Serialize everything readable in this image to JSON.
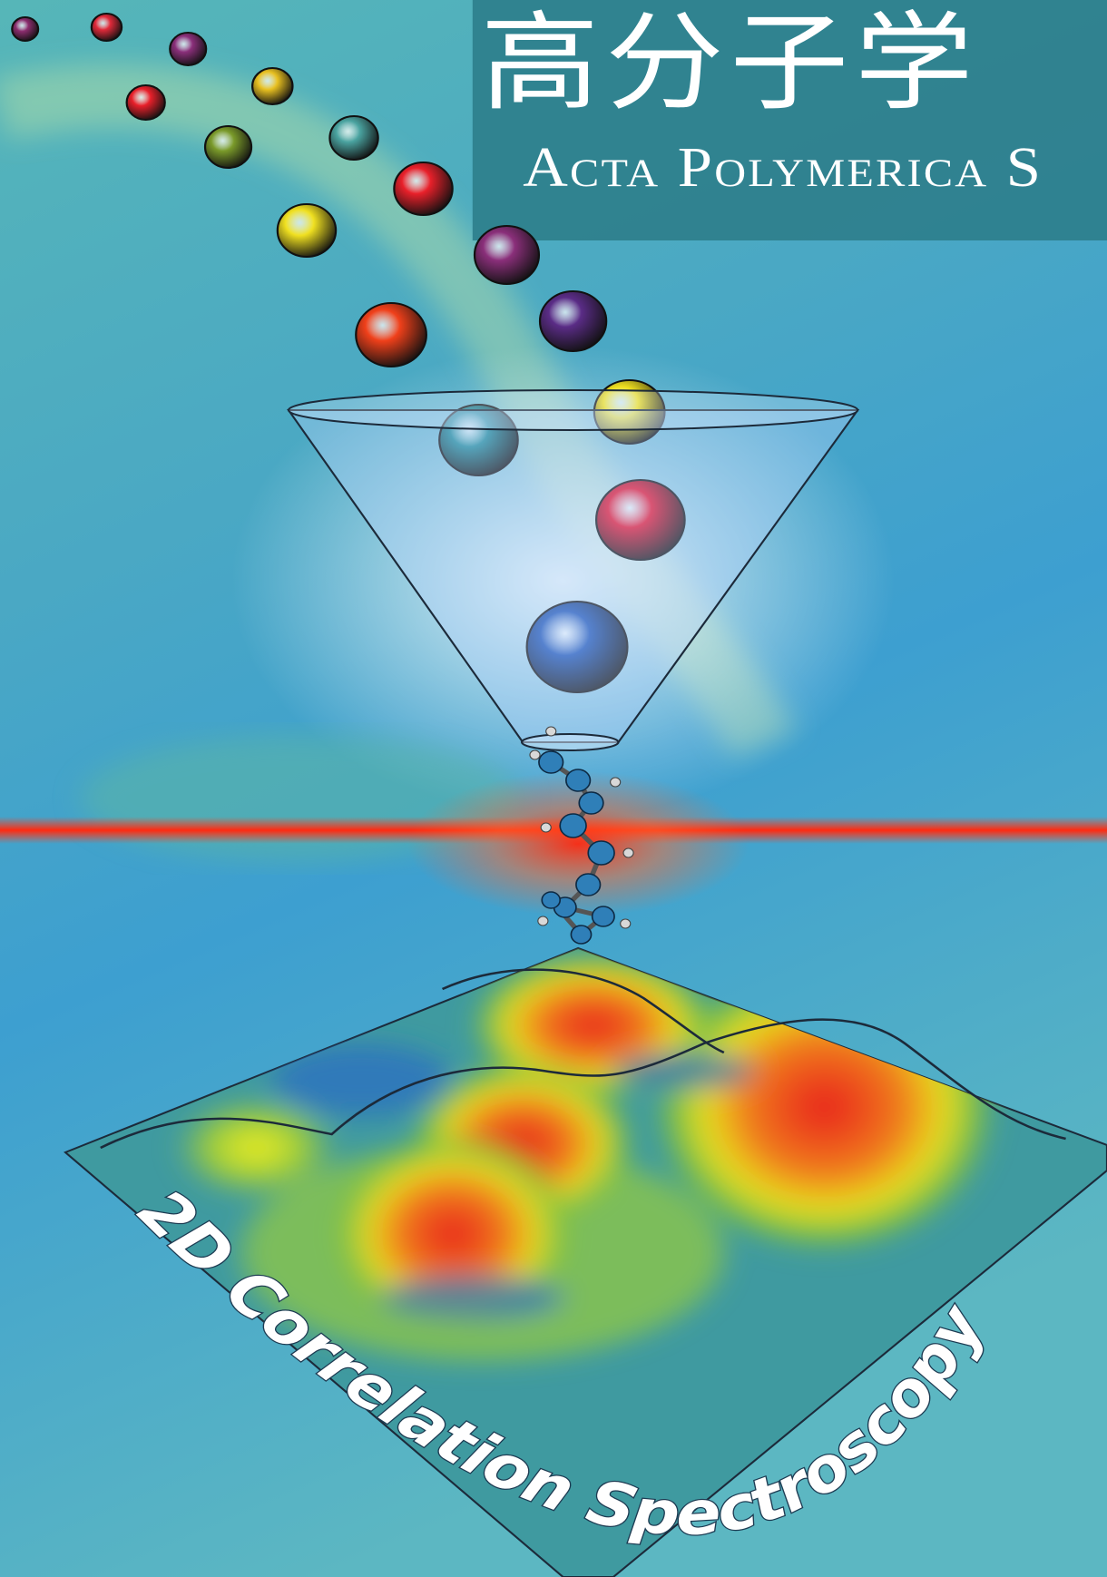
{
  "cover": {
    "title_cn": "高分子学",
    "title_en": "Acta Polymerica S",
    "feature": "2D Correlation Spectroscopy"
  }
}
